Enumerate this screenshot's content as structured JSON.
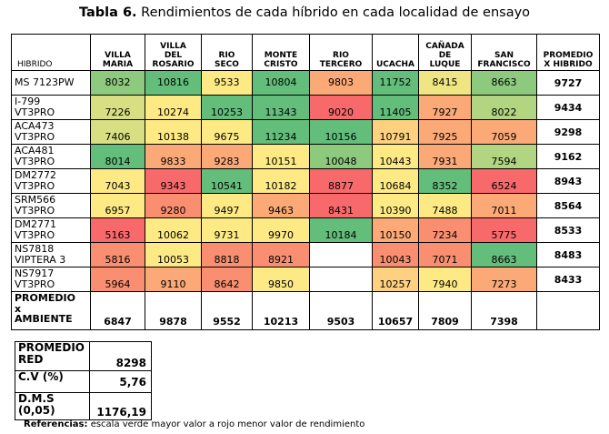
{
  "title": {
    "bold": "Tabla 6.",
    "text": " Rendimientos de cada híbrido en cada localidad de ensayo"
  },
  "colors": {
    "dark_green": "#63be7b",
    "green": "#8dca7e",
    "light_green": "#b1d580",
    "yellow_green": "#d7df82",
    "yellow": "#fdea84",
    "light_orange": "#fdd17f",
    "orange": "#fbaa77",
    "red_orange": "#f98f70",
    "red": "#f8696b"
  },
  "headers": [
    [
      "HIBRIDO"
    ],
    [
      "VILLA",
      "MARIA"
    ],
    [
      "VILLA",
      "DEL",
      "ROSARIO"
    ],
    [
      "RIO",
      "SECO"
    ],
    [
      "MONTE",
      "CRISTO"
    ],
    [
      "RIO",
      "TERCERO"
    ],
    [
      "UCACHA"
    ],
    [
      "CAÑADA",
      "DE",
      "LUQUE"
    ],
    [
      "SAN",
      "FRANCISCO"
    ],
    [
      "PROMEDIO",
      "X HIBRIDO"
    ]
  ],
  "rows": [
    {
      "name": [
        "MS 7123PW"
      ],
      "vpos": "mid",
      "promedio": "9727",
      "values": [
        "8032",
        "10816",
        "9533",
        "10804",
        "9803",
        "11752",
        "8415",
        "8663"
      ],
      "colors": [
        "#8dca7e",
        "#63be7b",
        "#fdea84",
        "#63be7b",
        "#fbaa77",
        "#63be7b",
        "#f0e583",
        "#8dca7e"
      ]
    },
    {
      "name": [
        "I-799",
        "VT3PRO"
      ],
      "vpos": "bot",
      "promedio": "9434",
      "values": [
        "7226",
        "10274",
        "10253",
        "11343",
        "9020",
        "11405",
        "7927",
        "8022"
      ],
      "colors": [
        "#d7df82",
        "#fdea84",
        "#63be7b",
        "#63be7b",
        "#f8696b",
        "#63be7b",
        "#fbaa77",
        "#b1d580"
      ]
    },
    {
      "name": [
        "ACA473",
        "VT3PRO"
      ],
      "vpos": "bot",
      "promedio": "9298",
      "values": [
        "7406",
        "10138",
        "9675",
        "11234",
        "10156",
        "10791",
        "7925",
        "7059"
      ],
      "colors": [
        "#d7df82",
        "#fdea84",
        "#fdea84",
        "#63be7b",
        "#63be7b",
        "#fdd17f",
        "#fbaa77",
        "#fbaa77"
      ]
    },
    {
      "name": [
        "ACA481",
        "VT3PRO"
      ],
      "vpos": "bot",
      "promedio": "9162",
      "values": [
        "8014",
        "9833",
        "9283",
        "10151",
        "10048",
        "10443",
        "7931",
        "7594"
      ],
      "colors": [
        "#63be7b",
        "#fbaa77",
        "#fbaa77",
        "#fdea84",
        "#8dca7e",
        "#fdea84",
        "#fbaa77",
        "#b1d580"
      ]
    },
    {
      "name": [
        "DM2772",
        "VT3PRO"
      ],
      "vpos": "bot",
      "promedio": "8943",
      "values": [
        "7043",
        "9343",
        "10541",
        "10182",
        "8877",
        "10684",
        "8352",
        "6524"
      ],
      "colors": [
        "#fdea84",
        "#f8696b",
        "#63be7b",
        "#fdea84",
        "#f8696b",
        "#fdea84",
        "#63be7b",
        "#f8696b"
      ]
    },
    {
      "name": [
        "SRM566",
        "VT3PRO"
      ],
      "vpos": "bot",
      "promedio": "8564",
      "values": [
        "6957",
        "9280",
        "9497",
        "9463",
        "8431",
        "10390",
        "7488",
        "7011"
      ],
      "colors": [
        "#fdea84",
        "#f98f70",
        "#fdea84",
        "#fbaa77",
        "#f8696b",
        "#fdea84",
        "#fdea84",
        "#fbaa77"
      ]
    },
    {
      "name": [
        "DM2771",
        "VT3PRO"
      ],
      "vpos": "bot",
      "promedio": "8533",
      "values": [
        "5163",
        "10062",
        "9731",
        "9970",
        "10184",
        "10150",
        "7234",
        "5775"
      ],
      "colors": [
        "#f8696b",
        "#fdea84",
        "#fdea84",
        "#fdea84",
        "#63be7b",
        "#fbaa77",
        "#f98f70",
        "#f8696b"
      ]
    },
    {
      "name": [
        "NS7818",
        "VIPTERA 3"
      ],
      "vpos": "bot",
      "promedio": "8483",
      "values": [
        "5816",
        "10053",
        "8818",
        "8921",
        "",
        "10043",
        "7071",
        "8663"
      ],
      "colors": [
        "#f98f70",
        "#fdea84",
        "#f98f70",
        "#f98f70",
        "#ffffff",
        "#f98f70",
        "#f98f70",
        "#63be7b"
      ]
    },
    {
      "name": [
        "NS7917",
        "VT3PRO"
      ],
      "vpos": "bot",
      "promedio": "8433",
      "values": [
        "5964",
        "9110",
        "8642",
        "9850",
        "",
        "10257",
        "7940",
        "7273"
      ],
      "colors": [
        "#f98f70",
        "#fbaa77",
        "#f98f70",
        "#fdea84",
        "#ffffff",
        "#fdd17f",
        "#fdea84",
        "#fbaa77"
      ]
    }
  ],
  "ambiente": {
    "label": [
      "PROMEDIO",
      "x",
      "AMBIENTE"
    ],
    "values": [
      "6847",
      "9878",
      "9552",
      "10213",
      "9503",
      "10657",
      "7809",
      "7398"
    ]
  },
  "stats": [
    {
      "label": [
        "PROMEDIO",
        "RED"
      ],
      "value": "8298"
    },
    {
      "label": [
        "C.V (%)"
      ],
      "value": "5,76"
    },
    {
      "label": [
        "D.M.S",
        "(0,05)"
      ],
      "value": "1176,19"
    }
  ],
  "refs": {
    "bold": "Referencias:",
    "text": " escala verde mayor valor a rojo menor valor de rendimiento"
  }
}
